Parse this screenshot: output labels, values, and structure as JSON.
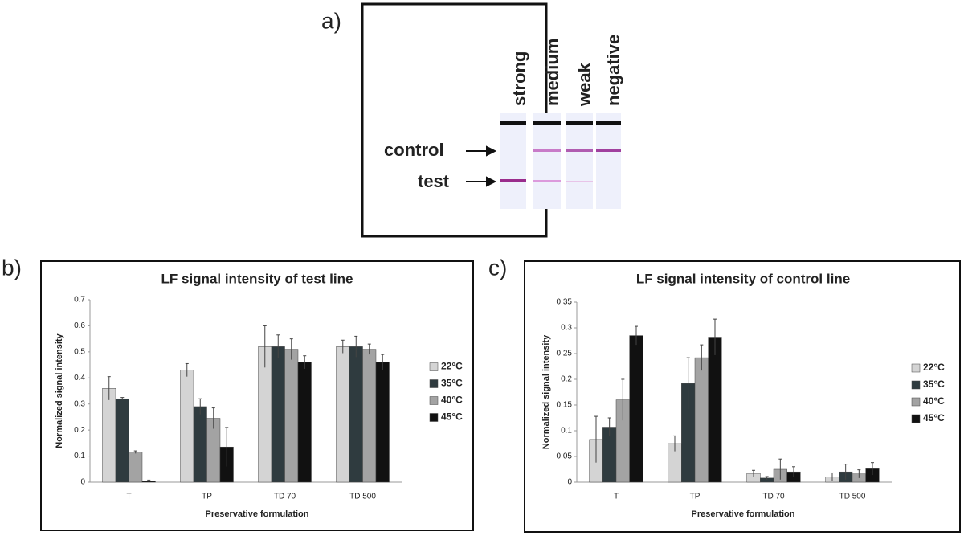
{
  "panel_labels": [
    "a)",
    "b)",
    "c)"
  ],
  "strip_panel": {
    "lanes": [
      "strong",
      "medium",
      "weak",
      "negative"
    ],
    "lines": [
      "control",
      "test"
    ]
  },
  "chart_data": [
    {
      "type": "bar",
      "title": "LF signal intensity of test line",
      "xlabel": "Preservative formulation",
      "ylabel": "Normalized signal intensity",
      "categories": [
        "T",
        "TP",
        "TD 70",
        "TD 500"
      ],
      "series": [
        {
          "name": "22°C",
          "color": "#d4d4d4",
          "values": [
            0.36,
            0.43,
            0.52,
            0.52
          ],
          "errors": [
            0.045,
            0.025,
            0.08,
            0.025
          ]
        },
        {
          "name": "35°C",
          "color": "#2f3b3f",
          "values": [
            0.32,
            0.29,
            0.52,
            0.52
          ],
          "errors": [
            0.005,
            0.03,
            0.045,
            0.04
          ]
        },
        {
          "name": "40°C",
          "color": "#a3a3a3",
          "values": [
            0.115,
            0.245,
            0.51,
            0.51
          ],
          "errors": [
            0.005,
            0.04,
            0.04,
            0.02
          ]
        },
        {
          "name": "45°C",
          "color": "#111111",
          "values": [
            0.005,
            0.135,
            0.46,
            0.46
          ],
          "errors": [
            0.003,
            0.075,
            0.025,
            0.03
          ]
        }
      ],
      "ylim": [
        0,
        0.7
      ],
      "yticks": [
        0,
        0.1,
        0.2,
        0.3,
        0.4,
        0.5,
        0.6,
        0.7
      ],
      "legend": "right"
    },
    {
      "type": "bar",
      "title": "LF signal intensity of control line",
      "xlabel": "Preservative formulation",
      "ylabel": "Normalized signal intensity",
      "categories": [
        "T",
        "TP",
        "TD 70",
        "TD 500"
      ],
      "series": [
        {
          "name": "22°C",
          "color": "#d4d4d4",
          "values": [
            0.083,
            0.075,
            0.017,
            0.01
          ],
          "errors": [
            0.045,
            0.015,
            0.006,
            0.008
          ]
        },
        {
          "name": "35°C",
          "color": "#2f3b3f",
          "values": [
            0.107,
            0.192,
            0.008,
            0.02
          ],
          "errors": [
            0.018,
            0.05,
            0.003,
            0.015
          ]
        },
        {
          "name": "40°C",
          "color": "#a3a3a3",
          "values": [
            0.16,
            0.242,
            0.025,
            0.016
          ],
          "errors": [
            0.04,
            0.025,
            0.02,
            0.008
          ]
        },
        {
          "name": "45°C",
          "color": "#111111",
          "values": [
            0.285,
            0.282,
            0.02,
            0.026
          ],
          "errors": [
            0.018,
            0.035,
            0.01,
            0.012
          ]
        }
      ],
      "ylim": [
        0,
        0.35
      ],
      "yticks": [
        0,
        0.05,
        0.1,
        0.15,
        0.2,
        0.25,
        0.3,
        0.35
      ],
      "legend": "right"
    }
  ]
}
